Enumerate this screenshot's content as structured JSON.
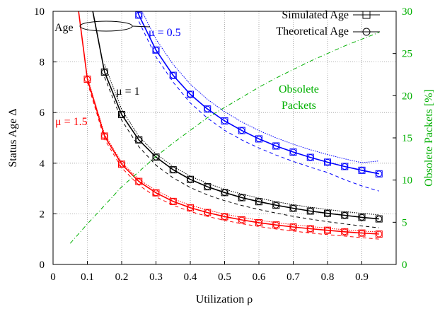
{
  "chart_data": {
    "type": "line",
    "xlabel": "Utilization ρ",
    "ylabel": "Status Age  Δ",
    "y2label": "Obsolete Packets [%]",
    "xlim": [
      0,
      1
    ],
    "ylim": [
      0,
      10
    ],
    "y2lim": [
      0,
      30
    ],
    "grid": true,
    "legend_position": "top-right",
    "x_ticks": [
      0,
      0.1,
      0.2,
      0.3,
      0.4,
      0.5,
      0.6,
      0.7,
      0.8,
      0.9
    ],
    "x_tick_labels": [
      "0",
      "0.1",
      "0.2",
      "0.3",
      "0.4",
      "0.5",
      "0.6",
      "0.7",
      "0.8",
      "0.9"
    ],
    "y_ticks": [
      0,
      2,
      4,
      6,
      8,
      10
    ],
    "y_tick_labels": [
      "0",
      "2",
      "4",
      "6",
      "8",
      "10"
    ],
    "y2_ticks": [
      0,
      5,
      10,
      15,
      20,
      25,
      30
    ],
    "y2_tick_labels": [
      "0",
      "5",
      "10",
      "15",
      "20",
      "25",
      "30"
    ],
    "legend": [
      {
        "label": "Simulated Age",
        "marker": "square"
      },
      {
        "label": "Theoretical Age",
        "marker": "circle"
      }
    ],
    "annotations": {
      "age_label": "Age",
      "mu_blue": "μ = 0.5",
      "mu_black": "μ = 1",
      "mu_red": "μ = 1.5",
      "obsolete_line1": "Obsolete",
      "obsolete_line2": "Packets"
    },
    "series": [
      {
        "group": "mu = 0.5",
        "color": "#0000ff",
        "x": [
          0.25,
          0.3,
          0.35,
          0.4,
          0.45,
          0.5,
          0.55,
          0.6,
          0.65,
          0.7,
          0.75,
          0.8,
          0.85,
          0.9,
          0.95
        ],
        "simulated": [
          9.85,
          8.47,
          7.47,
          6.72,
          6.14,
          5.67,
          5.29,
          4.96,
          4.68,
          4.44,
          4.23,
          4.04,
          3.87,
          3.72,
          3.58
        ],
        "upper_dotted": [
          10.25,
          8.9,
          7.9,
          7.12,
          6.52,
          6.03,
          5.63,
          5.29,
          5.0,
          4.75,
          4.53,
          4.34,
          4.17,
          4.02,
          4.09
        ],
        "lower_dashed": [
          9.6,
          8.2,
          7.2,
          6.38,
          5.78,
          5.3,
          4.92,
          4.6,
          4.32,
          4.07,
          3.84,
          3.63,
          3.35,
          3.1,
          2.9
        ]
      },
      {
        "group": "mu = 1",
        "color": "#000000",
        "x": [
          0.15,
          0.2,
          0.25,
          0.3,
          0.35,
          0.4,
          0.45,
          0.5,
          0.55,
          0.6,
          0.65,
          0.7,
          0.75,
          0.8,
          0.85,
          0.9,
          0.95
        ],
        "simulated": [
          7.6,
          5.92,
          4.92,
          4.24,
          3.74,
          3.36,
          3.07,
          2.84,
          2.64,
          2.48,
          2.34,
          2.22,
          2.11,
          2.02,
          1.94,
          1.86,
          1.8
        ],
        "upper_dotted": [
          7.9,
          6.12,
          5.06,
          4.37,
          3.87,
          3.49,
          3.2,
          2.97,
          2.78,
          2.62,
          2.48,
          2.36,
          2.26,
          2.17,
          2.09,
          2.02,
          1.96
        ],
        "lower_dashed": [
          7.4,
          5.7,
          4.65,
          3.92,
          3.42,
          3.04,
          2.75,
          2.52,
          2.33,
          2.17,
          2.03,
          1.9,
          1.79,
          1.69,
          1.6,
          1.52,
          1.45
        ]
      },
      {
        "group": "mu = 1.5",
        "color": "#ff0000",
        "x": [
          0.1,
          0.15,
          0.2,
          0.25,
          0.3,
          0.35,
          0.4,
          0.45,
          0.5,
          0.55,
          0.6,
          0.65,
          0.7,
          0.75,
          0.8,
          0.85,
          0.9,
          0.95
        ],
        "simulated": [
          7.32,
          5.07,
          3.96,
          3.28,
          2.83,
          2.49,
          2.24,
          2.05,
          1.89,
          1.76,
          1.65,
          1.56,
          1.48,
          1.41,
          1.35,
          1.29,
          1.24,
          1.2
        ],
        "upper_dotted": [
          7.4,
          5.15,
          4.03,
          3.36,
          2.92,
          2.59,
          2.34,
          2.15,
          1.99,
          1.86,
          1.75,
          1.65,
          1.57,
          1.5,
          1.43,
          1.37,
          1.32,
          1.28
        ],
        "lower_dashed": [
          7.2,
          4.95,
          3.82,
          3.13,
          2.67,
          2.34,
          2.09,
          1.9,
          1.74,
          1.61,
          1.5,
          1.4,
          1.32,
          1.24,
          1.18,
          1.12,
          1.06,
          1.0
        ]
      },
      {
        "name": "Obsolete Packets",
        "axis": "right",
        "color": "#00b000",
        "style": "dash-dot",
        "x": [
          0.05,
          0.1,
          0.15,
          0.2,
          0.25,
          0.3,
          0.35,
          0.4,
          0.45,
          0.5,
          0.55,
          0.6,
          0.65,
          0.7,
          0.75,
          0.8,
          0.85,
          0.9,
          0.95
        ],
        "values": [
          2.5,
          4.8,
          7.0,
          9.2,
          11.0,
          12.8,
          14.4,
          15.9,
          17.4,
          18.6,
          19.8,
          21.0,
          22.1,
          23.1,
          24.1,
          25.0,
          25.9,
          26.7,
          27.5
        ]
      }
    ]
  }
}
